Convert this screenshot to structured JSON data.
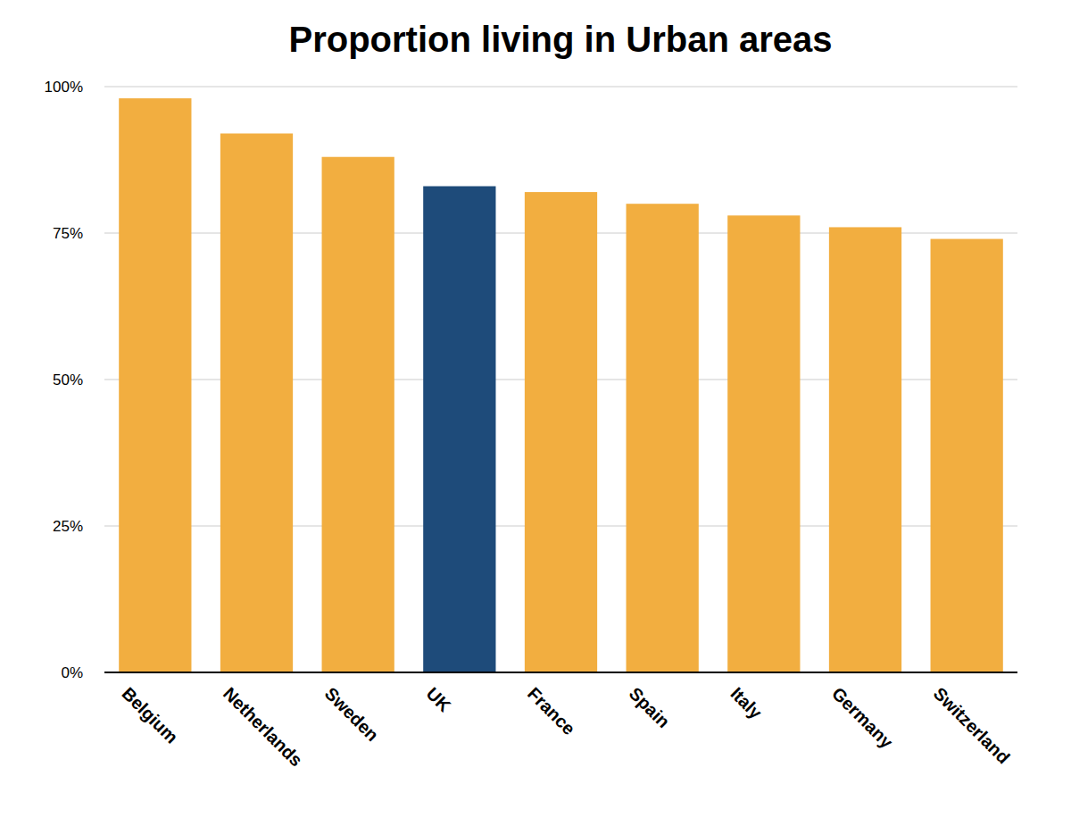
{
  "chart_data": {
    "type": "bar",
    "title": "Proportion living in Urban areas",
    "categories": [
      "Belgium",
      "Netherlands",
      "Sweden",
      "UK",
      "France",
      "Spain",
      "Italy",
      "Germany",
      "Switzerland"
    ],
    "values": [
      98,
      92,
      88,
      83,
      82,
      80,
      78,
      76,
      74
    ],
    "colors": [
      "#f2ae40",
      "#f2ae40",
      "#f2ae40",
      "#1e4b7a",
      "#f2ae40",
      "#f2ae40",
      "#f2ae40",
      "#f2ae40",
      "#f2ae40"
    ],
    "ylim": [
      0,
      100
    ],
    "yticks": [
      {
        "value": 0,
        "label": "0%"
      },
      {
        "value": 25,
        "label": "25%"
      },
      {
        "value": 50,
        "label": "50%"
      },
      {
        "value": 75,
        "label": "75%"
      },
      {
        "value": 100,
        "label": "100%"
      }
    ],
    "grid": true
  }
}
